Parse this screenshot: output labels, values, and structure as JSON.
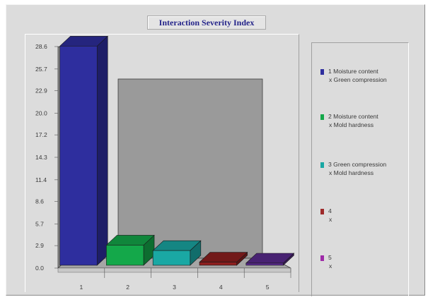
{
  "chart_data": {
    "type": "bar",
    "title": "Interaction Severity Index",
    "categories": [
      "1",
      "2",
      "3",
      "4",
      "5"
    ],
    "values": [
      28.3,
      2.6,
      1.9,
      0.4,
      0.2
    ],
    "colors": [
      "#2e2e9e",
      "#14a84a",
      "#1aa8a4",
      "#8e1f1f",
      "#5a2a8e"
    ],
    "ylim": [
      0,
      28.6
    ],
    "yticks": [
      "0.0",
      "2.9",
      "5.7",
      "8.6",
      "11.4",
      "14.3",
      "17.2",
      "20.0",
      "22.9",
      "25.7",
      "28.6"
    ],
    "grid": false,
    "legend_position": "right",
    "legend": [
      {
        "label1": "1 Moisture content",
        "label2": "x Green compression",
        "color": "#2e2e9e"
      },
      {
        "label1": "2 Moisture content",
        "label2": "x Mold hardness",
        "color": "#14a84a"
      },
      {
        "label1": "3 Green compression",
        "label2": "x Mold hardness",
        "color": "#1aa8a4"
      },
      {
        "label1": "4",
        "label2": "x",
        "color": "#9e2a2a"
      },
      {
        "label1": "5",
        "label2": "x",
        "color": "#9e2aa8"
      }
    ]
  }
}
